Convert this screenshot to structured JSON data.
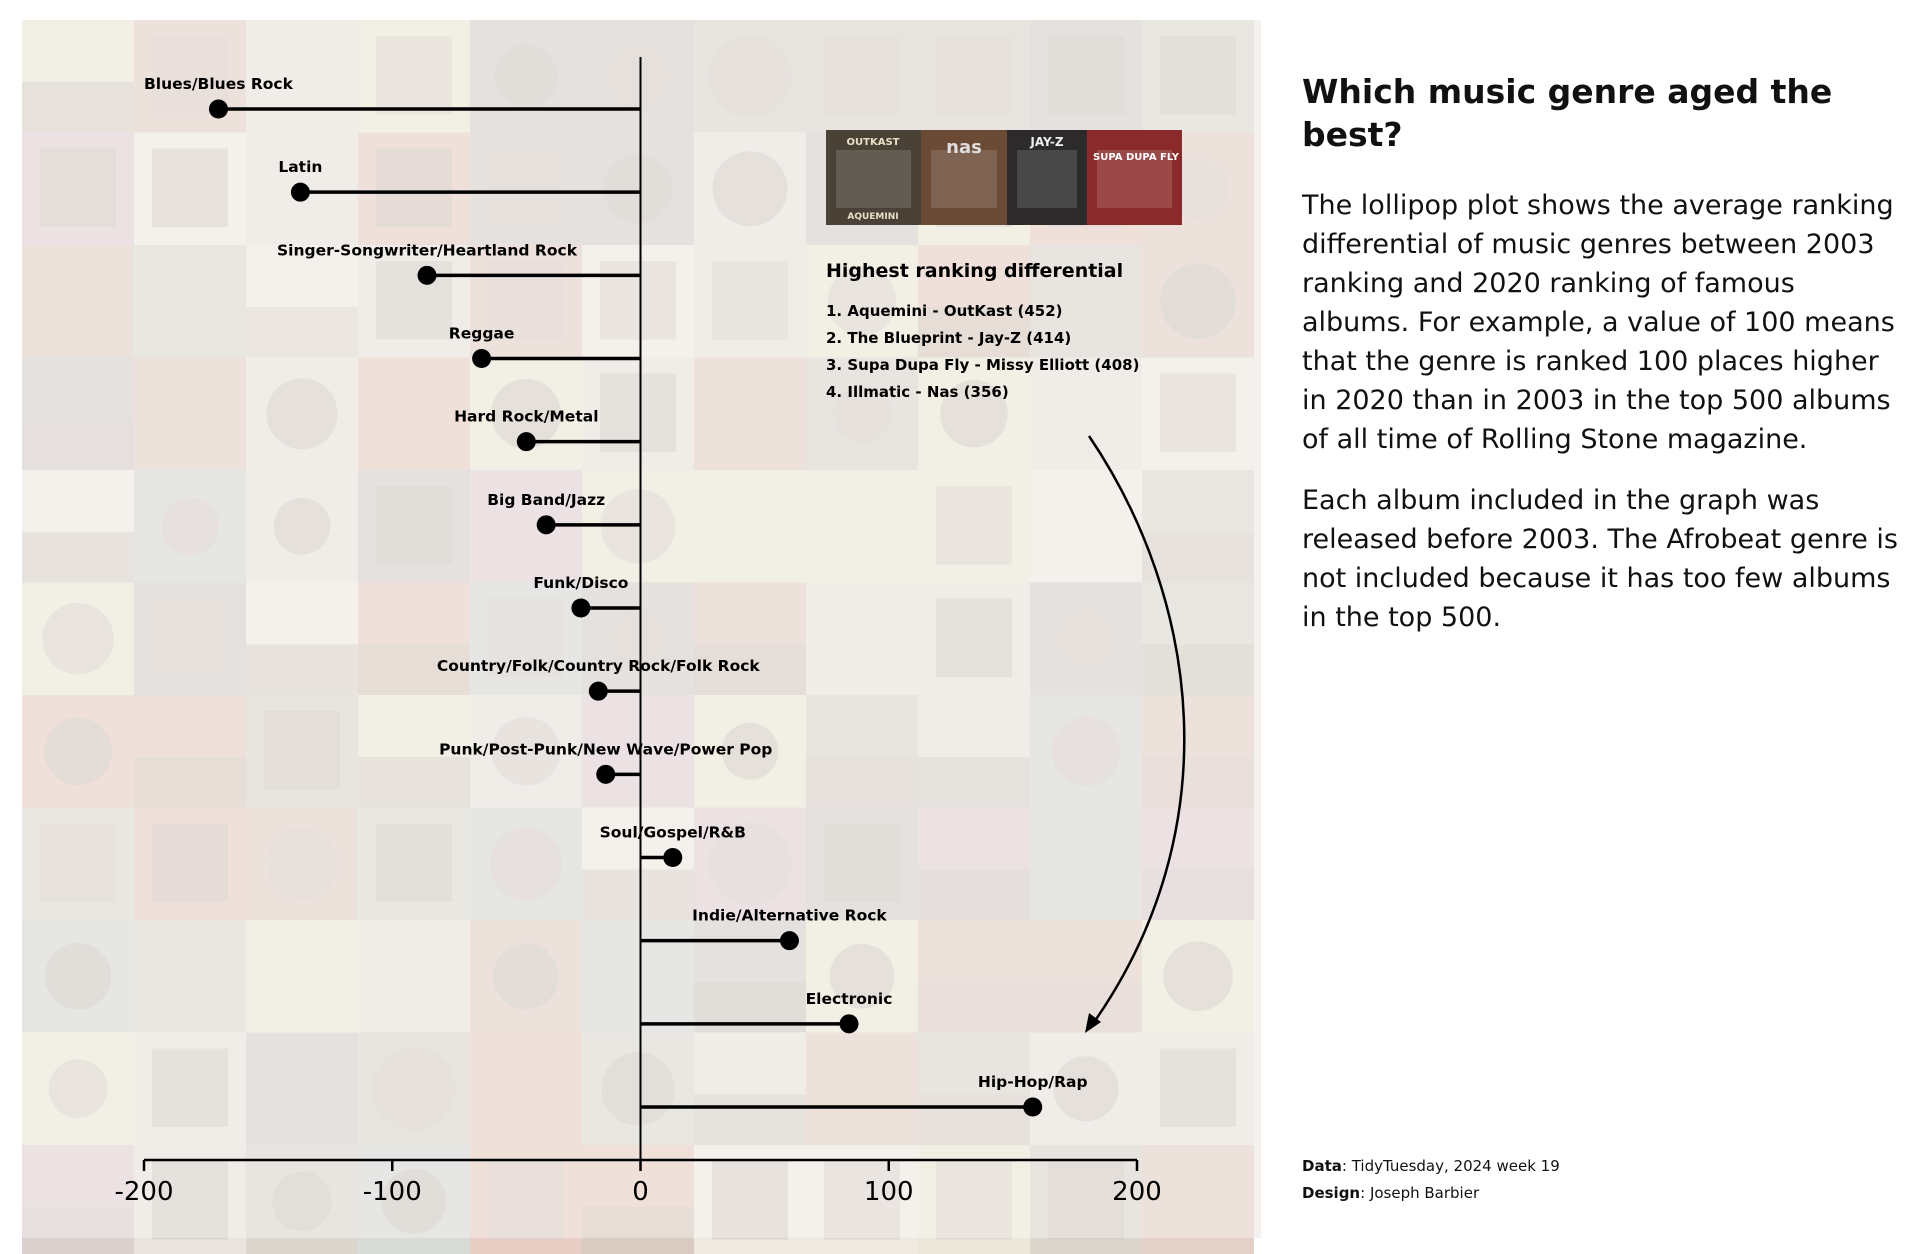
{
  "chart_data": {
    "type": "lollipop",
    "categories": [
      "Blues/Blues Rock",
      "Latin",
      "Singer-Songwriter/Heartland Rock",
      "Reggae",
      "Hard Rock/Metal",
      "Big Band/Jazz",
      "Funk/Disco",
      "Country/Folk/Country Rock/Folk Rock",
      "Punk/Post-Punk/New Wave/Power Pop",
      "Soul/Gospel/R&B",
      "Indie/Alternative Rock",
      "Electronic",
      "Hip-Hop/Rap"
    ],
    "values": [
      -170,
      -137,
      -86,
      -64,
      -46,
      -38,
      -24,
      -17,
      -14,
      13,
      60,
      84,
      158
    ],
    "xlim": [
      -200,
      200
    ],
    "xticks": [
      -200,
      -100,
      0,
      100,
      200
    ],
    "xtick_labels": [
      "-200",
      "-100",
      "0",
      "100",
      "200"
    ],
    "grid": false,
    "legend": "none"
  },
  "annotation": {
    "title": "Highest ranking differential",
    "items": [
      "1. Aquemini - OutKast (452)",
      "2. The Blueprint - Jay-Z (414)",
      "3. Supa Dupa Fly - Missy Elliott (408)",
      "4. Illmatic - Nas (356)"
    ],
    "cover_labels": [
      "OUTKAST",
      "AQUEMINI",
      "nas",
      "JAY-Z",
      "SUPA DUPA FLY"
    ]
  },
  "sidebar": {
    "title": "Which music genre aged the best?",
    "paragraphs": [
      "The lollipop plot shows the average ranking differential of music genres between 2003 ranking and 2020 ranking of famous albums. For example, a value of 100 means that the genre is ranked 100 places higher in 2020 than in 2003 in the top 500 albums of all time of Rolling Stone magazine.",
      "Each album included in the graph was released before 2003. The Afrobeat genre is not included because it has too few albums in the top 500."
    ]
  },
  "credits": {
    "data_label": "Data",
    "data_value": ": TidyTuesday, 2024 week 19",
    "design_label": "Design",
    "design_value": ": Joseph Barbier"
  },
  "colors": {
    "ink": "#000000",
    "background": "#ffffff",
    "cover_palette": [
      "#e9e4de",
      "#dcd6cf",
      "#e4d2c8",
      "#d9dbd8",
      "#ece7d8",
      "#e2d3d6",
      "#d6d2cc",
      "#efe9e1",
      "#e8cfc6",
      "#dedad2"
    ]
  }
}
